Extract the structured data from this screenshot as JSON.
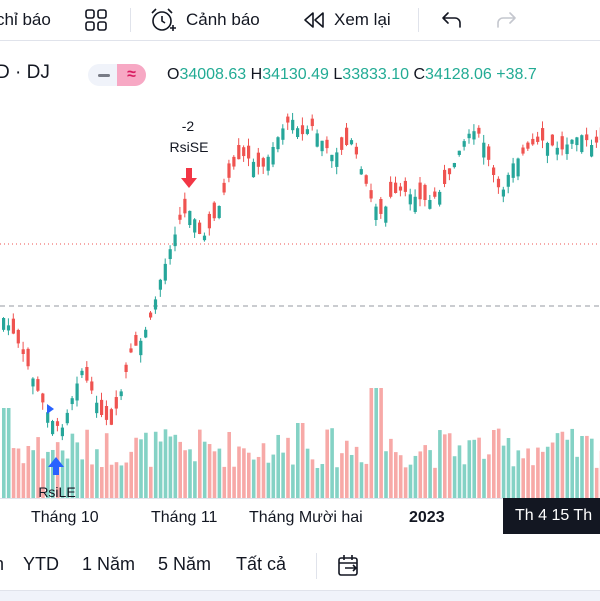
{
  "toolbar": {
    "indicators_label": "chỉ báo",
    "alerts_label": "Cảnh báo",
    "replay_label": "Xem lại"
  },
  "legend": {
    "symbol": "D · DJ",
    "open_label": "O",
    "open": "34008.63",
    "high_label": "H",
    "high": "34130.49",
    "low_label": "L",
    "low": "33833.10",
    "close_label": "C",
    "close": "34128.06",
    "change": "+38.7"
  },
  "annotations": {
    "sell_count": "-2",
    "sell_label": "RsiSE",
    "buy_label": "RsiLE"
  },
  "xaxis": {
    "labels": [
      "Tháng 10",
      "Tháng 11",
      "Tháng Mười hai",
      "2023"
    ],
    "crosshair": "Th 4 15 Th"
  },
  "ranges": {
    "partial": "n",
    "ytd": "YTD",
    "one_year": "1 Năm",
    "five_years": "5 Năm",
    "all": "Tất cả"
  },
  "colors": {
    "up": "#26a69a",
    "down": "#ef5350",
    "vol_up": "#84d2c5",
    "vol_down": "#f7a9a7"
  },
  "icons": [
    "grid-icon",
    "alarm-clock-icon",
    "rewind-icon",
    "undo-icon",
    "redo-icon",
    "calendar-goto-icon",
    "sell-arrow-icon",
    "buy-arrow-icon"
  ]
}
